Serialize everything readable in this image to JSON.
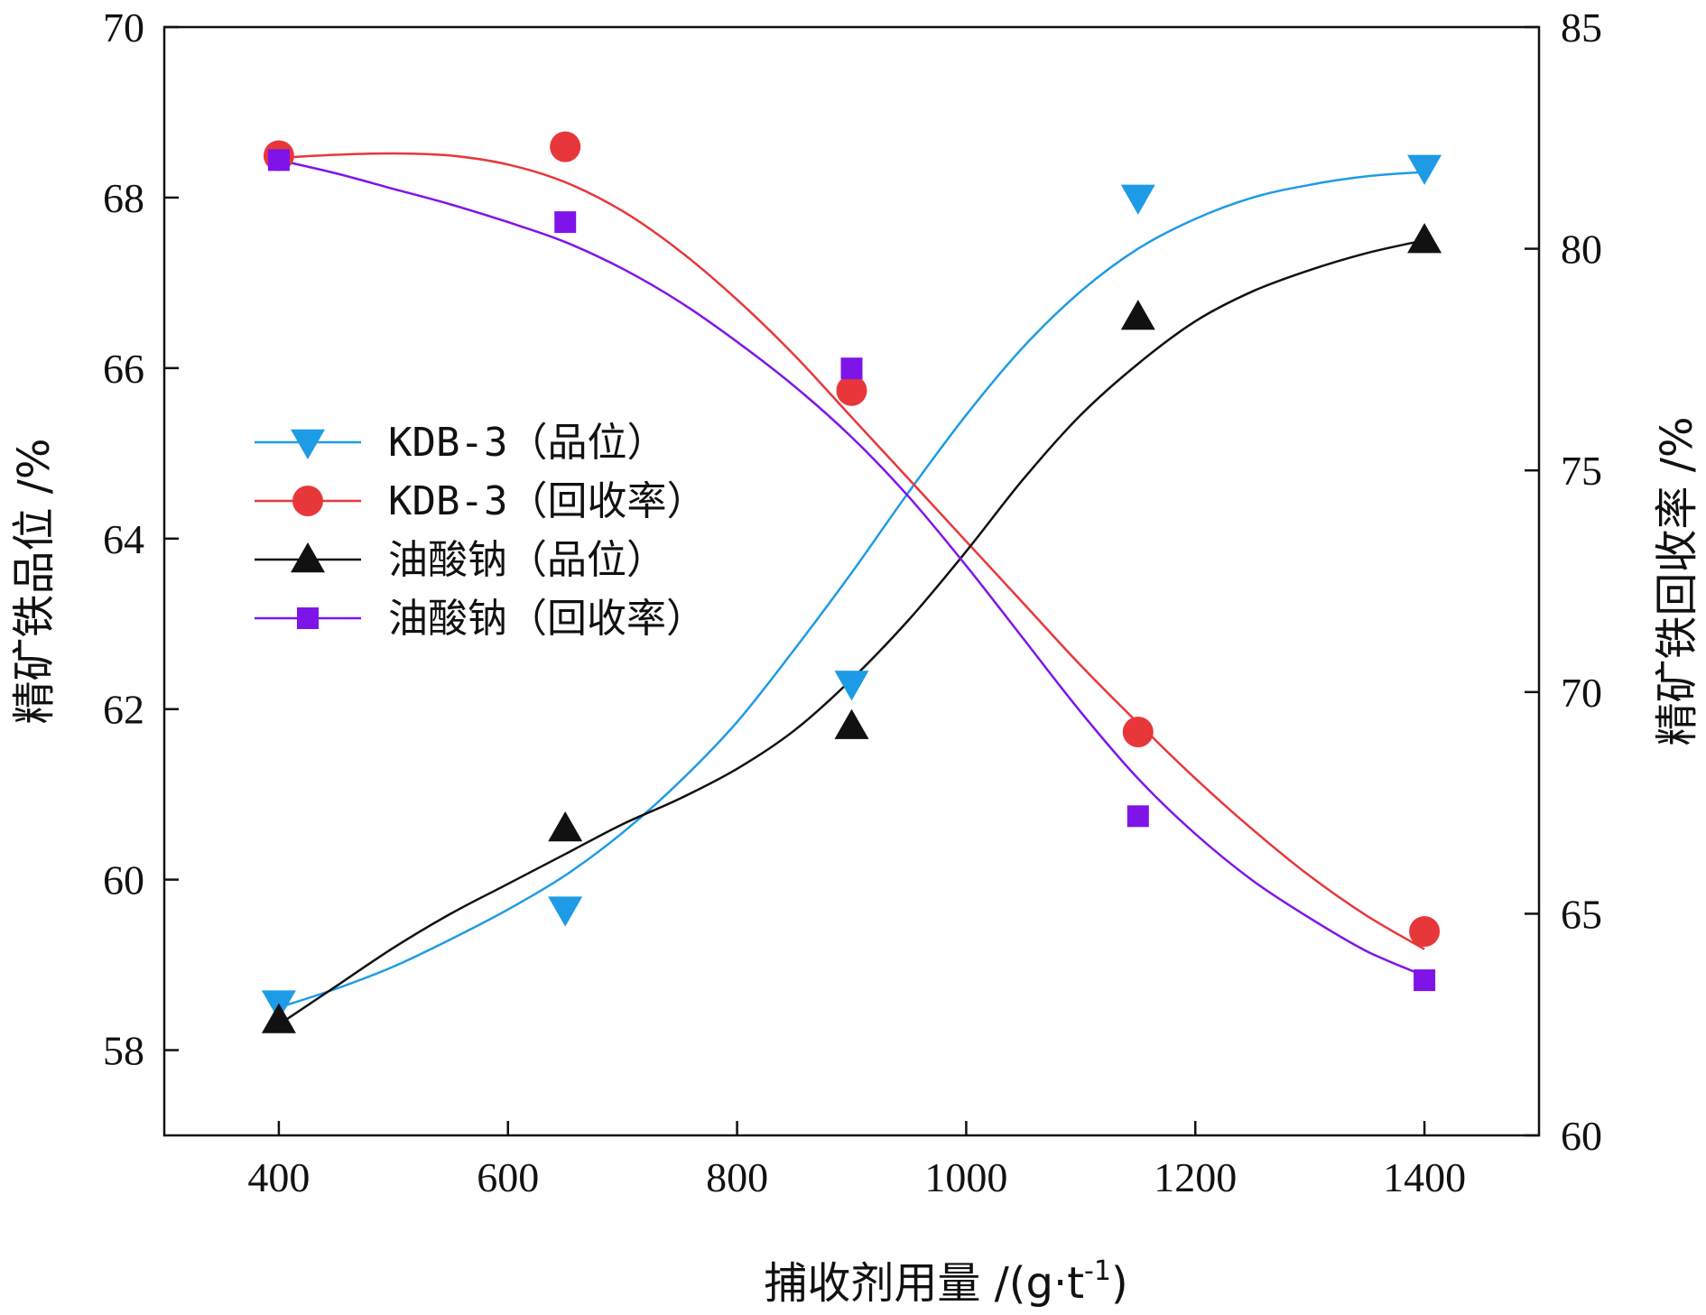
{
  "chart_data": {
    "type": "line",
    "title": "",
    "xlabel": "捕收剂用量 /(g·t",
    "xlabel_sup": "-1",
    "xlabel_end": ")",
    "ylabel_left": "精矿铁品位 /%",
    "ylabel_right": "精矿铁回收率 /%",
    "xlim": [
      300,
      1500
    ],
    "ylim_left": [
      57,
      70
    ],
    "ylim_right": [
      60,
      85
    ],
    "x_ticks": [
      400,
      600,
      800,
      1000,
      1200,
      1400
    ],
    "y_left_ticks": [
      58,
      60,
      62,
      64,
      66,
      68,
      70
    ],
    "y_right_ticks": [
      60,
      65,
      70,
      75,
      80,
      85
    ],
    "x": [
      400,
      650,
      900,
      1150,
      1400
    ],
    "legend_position": "center-left",
    "series": [
      {
        "name": "KDB-3（品位）",
        "axis": "left",
        "marker": "triangle-down",
        "color": "#1E9BE6",
        "values": [
          58.55,
          59.65,
          62.3,
          68.0,
          68.35
        ],
        "fit": [
          [
            400,
            58.5
          ],
          [
            450,
            58.72
          ],
          [
            500,
            58.98
          ],
          [
            550,
            59.3
          ],
          [
            600,
            59.65
          ],
          [
            650,
            60.05
          ],
          [
            700,
            60.55
          ],
          [
            750,
            61.15
          ],
          [
            800,
            61.85
          ],
          [
            850,
            62.7
          ],
          [
            900,
            63.6
          ],
          [
            950,
            64.55
          ],
          [
            1000,
            65.45
          ],
          [
            1050,
            66.25
          ],
          [
            1100,
            66.9
          ],
          [
            1150,
            67.4
          ],
          [
            1200,
            67.75
          ],
          [
            1250,
            68.0
          ],
          [
            1300,
            68.15
          ],
          [
            1350,
            68.25
          ],
          [
            1400,
            68.3
          ]
        ]
      },
      {
        "name": "KDB-3（回收率）",
        "axis": "right",
        "marker": "circle",
        "color": "#E8373A",
        "values": [
          82.1,
          82.3,
          76.8,
          69.1,
          64.6
        ],
        "fit": [
          [
            400,
            82.05
          ],
          [
            450,
            82.12
          ],
          [
            500,
            82.15
          ],
          [
            550,
            82.1
          ],
          [
            600,
            81.9
          ],
          [
            650,
            81.5
          ],
          [
            700,
            80.85
          ],
          [
            750,
            79.95
          ],
          [
            800,
            78.85
          ],
          [
            850,
            77.6
          ],
          [
            900,
            76.2
          ],
          [
            950,
            74.8
          ],
          [
            1000,
            73.4
          ],
          [
            1050,
            72.0
          ],
          [
            1100,
            70.6
          ],
          [
            1150,
            69.3
          ],
          [
            1200,
            68.05
          ],
          [
            1250,
            66.9
          ],
          [
            1300,
            65.85
          ],
          [
            1350,
            64.95
          ],
          [
            1400,
            64.2
          ]
        ]
      },
      {
        "name": "油酸钠（品位）",
        "axis": "left",
        "marker": "triangle-up",
        "color": "#111111",
        "values": [
          58.35,
          60.6,
          61.8,
          66.6,
          67.5
        ],
        "fit": [
          [
            400,
            58.3
          ],
          [
            450,
            58.75
          ],
          [
            500,
            59.2
          ],
          [
            550,
            59.6
          ],
          [
            600,
            59.95
          ],
          [
            650,
            60.3
          ],
          [
            700,
            60.65
          ],
          [
            750,
            60.95
          ],
          [
            800,
            61.3
          ],
          [
            850,
            61.75
          ],
          [
            900,
            62.35
          ],
          [
            950,
            63.05
          ],
          [
            1000,
            63.85
          ],
          [
            1050,
            64.7
          ],
          [
            1100,
            65.45
          ],
          [
            1150,
            66.05
          ],
          [
            1200,
            66.55
          ],
          [
            1250,
            66.9
          ],
          [
            1300,
            67.15
          ],
          [
            1350,
            67.35
          ],
          [
            1400,
            67.5
          ]
        ]
      },
      {
        "name": "油酸钠（回收率）",
        "axis": "right",
        "marker": "square",
        "color": "#7F14E8",
        "values": [
          82.0,
          80.6,
          77.3,
          67.2,
          63.5
        ],
        "fit": [
          [
            400,
            82.0
          ],
          [
            450,
            81.7
          ],
          [
            500,
            81.35
          ],
          [
            550,
            81.0
          ],
          [
            600,
            80.6
          ],
          [
            650,
            80.15
          ],
          [
            700,
            79.55
          ],
          [
            750,
            78.8
          ],
          [
            800,
            77.9
          ],
          [
            850,
            76.9
          ],
          [
            900,
            75.75
          ],
          [
            950,
            74.4
          ],
          [
            1000,
            72.85
          ],
          [
            1050,
            71.2
          ],
          [
            1100,
            69.55
          ],
          [
            1150,
            68.05
          ],
          [
            1200,
            66.8
          ],
          [
            1250,
            65.75
          ],
          [
            1300,
            64.9
          ],
          [
            1350,
            64.15
          ],
          [
            1400,
            63.6
          ]
        ]
      }
    ]
  }
}
